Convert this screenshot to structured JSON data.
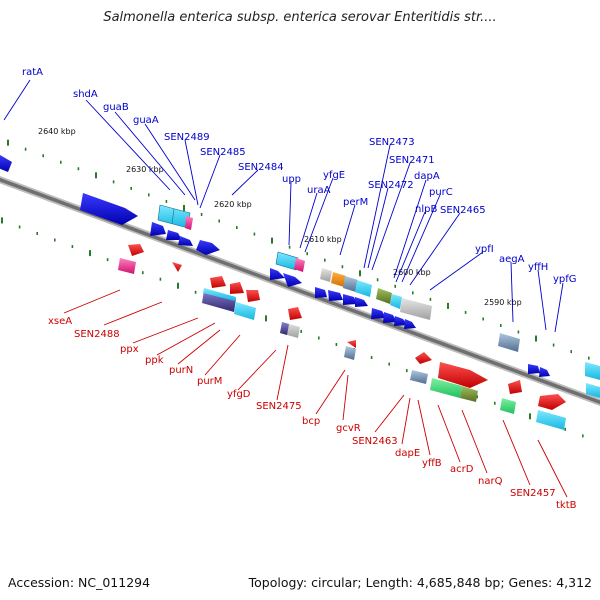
{
  "title": "Salmonella enterica subsp. enterica serovar Enteritidis str....",
  "footer": {
    "accession": "Accession: NC_011294",
    "stats": "Topology: circular; Length: 4,685,848 bp; Genes: 4,312"
  },
  "colors": {
    "forward_label": "#0000cc",
    "reverse_label": "#cc0000",
    "backbone": "#777777",
    "tick": "#2a7a2a"
  },
  "kbp_ticks": [
    "2640 kbp",
    "2630 kbp",
    "2620 kbp",
    "2610 kbp",
    "2600 kbp",
    "2590 kbp"
  ],
  "forward_genes": [
    "ratA",
    "shdA",
    "guaB",
    "guaA",
    "SEN2489",
    "SEN2485",
    "SEN2484",
    "upp",
    "uraA",
    "yfgE",
    "perM",
    "SEN2473",
    "SEN2471",
    "SEN2472",
    "dapA",
    "purC",
    "nlpB",
    "SEN2465",
    "ypfI",
    "aegA",
    "yffH",
    "ypfG"
  ],
  "reverse_genes": [
    "xseA",
    "SEN2488",
    "ppx",
    "ppk",
    "purN",
    "purM",
    "yfgD",
    "SEN2475",
    "bcp",
    "gcvR",
    "SEN2463",
    "dapE",
    "yffB",
    "acrD",
    "narQ",
    "SEN2457",
    "tktB"
  ]
}
